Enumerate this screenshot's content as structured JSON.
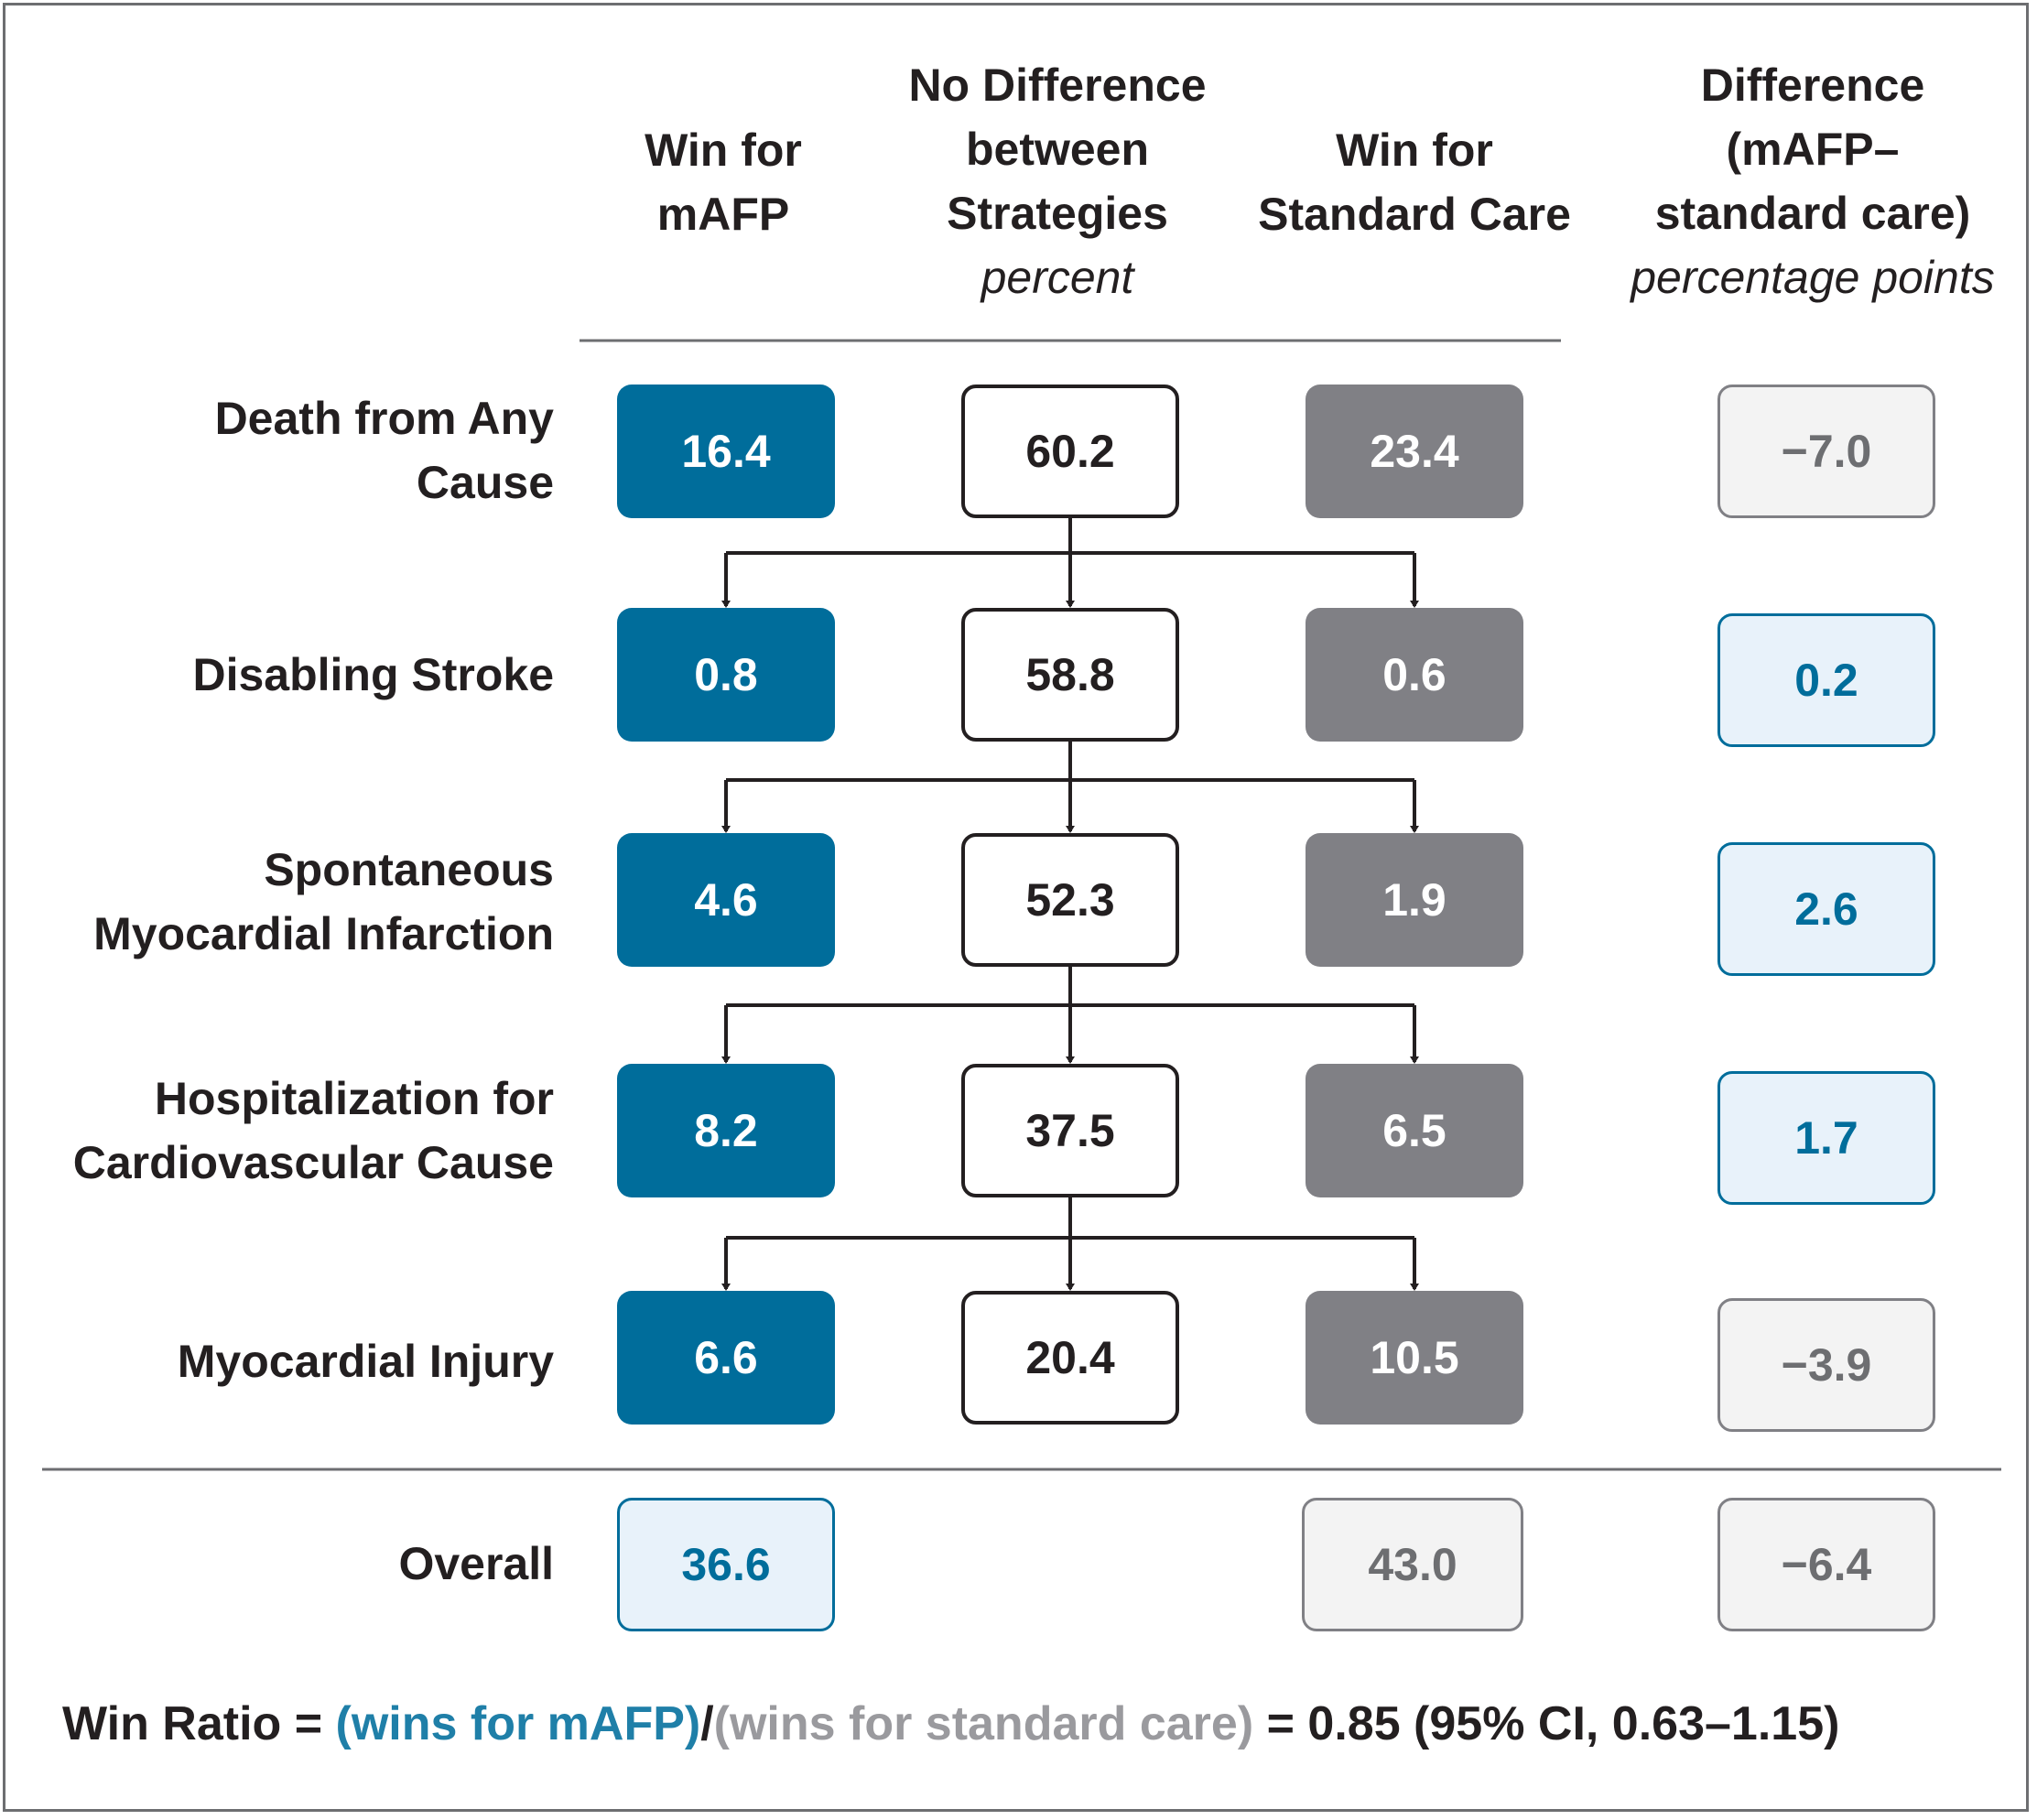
{
  "headers": {
    "win_mafp": [
      "Win for",
      "mAFP"
    ],
    "no_diff": [
      "No Difference",
      "between",
      "Strategies"
    ],
    "no_diff_unit": "percent",
    "win_std": [
      "Win for",
      "Standard Care"
    ],
    "difference": [
      "Difference",
      "(mAFP–",
      "standard care)"
    ],
    "difference_unit": "percentage points"
  },
  "rows": [
    {
      "label": [
        "Death from Any",
        "Cause"
      ],
      "win_mafp": "16.4",
      "no_diff": "60.2",
      "win_std": "23.4",
      "difference": "−7.0"
    },
    {
      "label": [
        "Disabling Stroke"
      ],
      "win_mafp": "0.8",
      "no_diff": "58.8",
      "win_std": "0.6",
      "difference": "0.2"
    },
    {
      "label": [
        "Spontaneous",
        "Myocardial Infarction"
      ],
      "win_mafp": "4.6",
      "no_diff": "52.3",
      "win_std": "1.9",
      "difference": "2.6"
    },
    {
      "label": [
        "Hospitalization for",
        "Cardiovascular Cause"
      ],
      "win_mafp": "8.2",
      "no_diff": "37.5",
      "win_std": "6.5",
      "difference": "1.7"
    },
    {
      "label": [
        "Myocardial Injury"
      ],
      "win_mafp": "6.6",
      "no_diff": "20.4",
      "win_std": "10.5",
      "difference": "−3.9"
    }
  ],
  "overall": {
    "label": "Overall",
    "win_mafp": "36.6",
    "win_std": "43.0",
    "difference": "−6.4"
  },
  "formula": {
    "prefix": "Win Ratio = ",
    "wins_mafp": "(wins for mAFP)",
    "slash": "/",
    "wins_std": "(wins for standard care)",
    "suffix": " = 0.85 (95% CI, 0.63–1.15)"
  },
  "colors": {
    "win_mafp": "#006d9b",
    "win_std": "#808085",
    "positive_difference": "#006d9b",
    "negative_difference": "#6d6e71"
  }
}
